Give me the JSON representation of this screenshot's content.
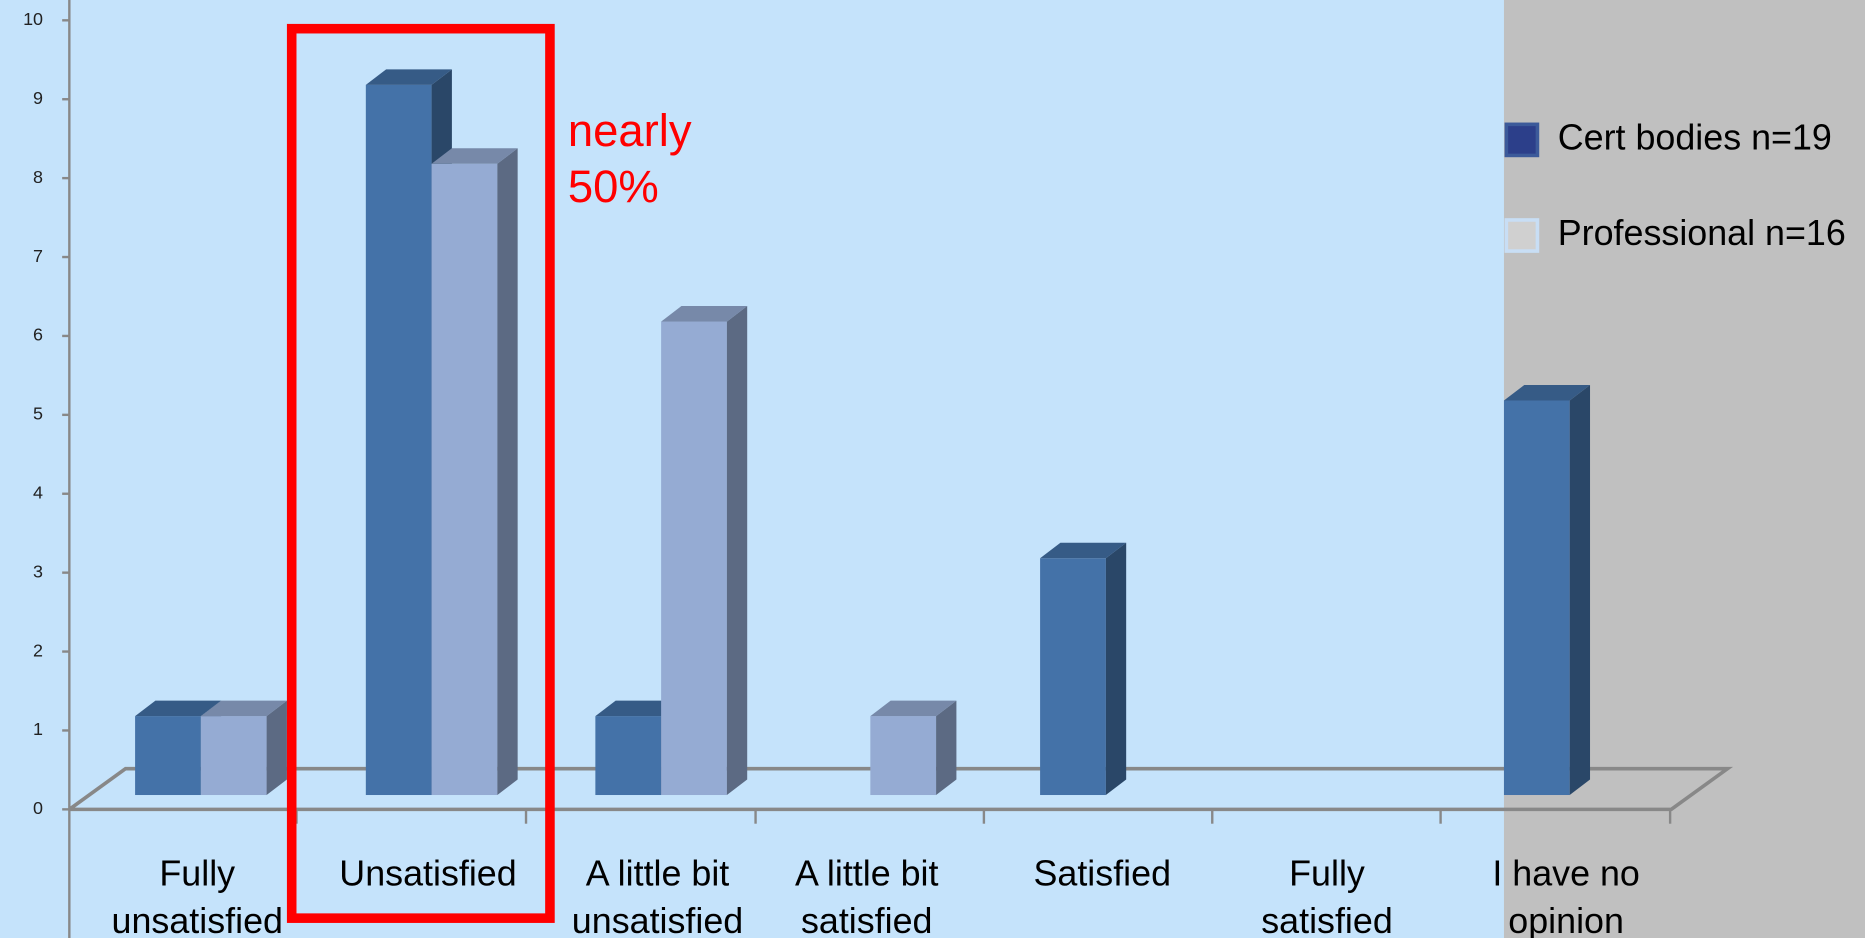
{
  "chart_data": {
    "type": "bar",
    "categories": [
      "Fully\nunsatisfied",
      "Unsatisfied",
      "A little bit\nunsatisfied",
      "A little bit\nsatisfied",
      "Satisfied",
      "Fully\nsatisfied",
      "I have no\nopinion"
    ],
    "series": [
      {
        "name": "Cert bodies  n=19",
        "color": "#4472a8",
        "values": [
          1,
          9,
          1,
          0,
          3,
          0,
          5
        ]
      },
      {
        "name": "Professional   n=16",
        "color": "#95abd3",
        "values": [
          1,
          8,
          6,
          1,
          0,
          0,
          0
        ]
      }
    ],
    "ylim": [
      0,
      10
    ],
    "yticks": [
      0,
      1,
      2,
      3,
      4,
      5,
      6,
      7,
      8,
      9,
      10
    ],
    "annotation": "nearly\n50%",
    "legend": "right"
  }
}
